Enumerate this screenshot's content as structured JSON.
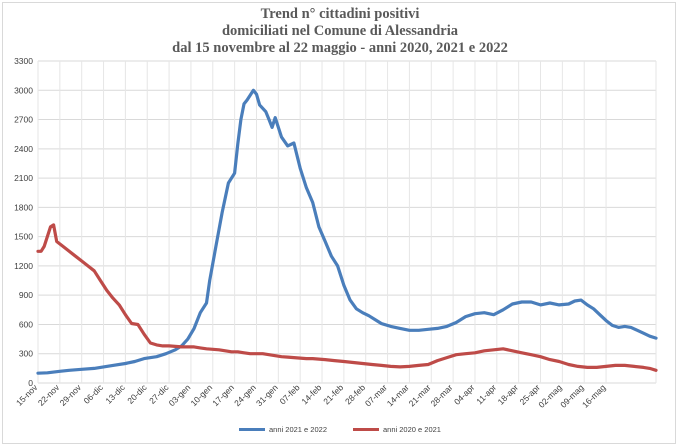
{
  "chart_data": {
    "type": "line",
    "title": [
      "Trend n° cittadini positivi",
      "domiciliati nel Comune di Alessandria",
      "dal 15 novembre al 22 maggio - anni 2020, 2021 e 2022"
    ],
    "xlabel": "",
    "ylabel": "",
    "ylim": [
      0,
      3300
    ],
    "yticks": [
      0,
      300,
      600,
      900,
      1200,
      1500,
      1800,
      2100,
      2400,
      2700,
      3000,
      3300
    ],
    "x_tick_labels": [
      "15-nov",
      "22-nov",
      "29-nov",
      "06-dic",
      "13-dic",
      "20-dic",
      "27-dic",
      "03-gen",
      "10-gen",
      "17-gen",
      "24-gen",
      "31-gen",
      "07-feb",
      "14-feb",
      "21-feb",
      "28-feb",
      "07-mar",
      "14-mar",
      "21-mar",
      "28-mar",
      "04-apr",
      "11-apr",
      "18-apr",
      "25-apr",
      "02-mag",
      "09-mag",
      "16-mag"
    ],
    "x_days_span": 189,
    "grid": true,
    "legend_position": "bottom",
    "series": [
      {
        "name": "anni 2021 e 2022",
        "color": "#4a7ebb",
        "points": [
          [
            0,
            100
          ],
          [
            3,
            105
          ],
          [
            7,
            120
          ],
          [
            10,
            130
          ],
          [
            14,
            140
          ],
          [
            18,
            150
          ],
          [
            21,
            165
          ],
          [
            24,
            180
          ],
          [
            28,
            200
          ],
          [
            31,
            220
          ],
          [
            34,
            250
          ],
          [
            38,
            270
          ],
          [
            41,
            300
          ],
          [
            44,
            340
          ],
          [
            46,
            380
          ],
          [
            48,
            450
          ],
          [
            50,
            560
          ],
          [
            52,
            720
          ],
          [
            54,
            820
          ],
          [
            55,
            1050
          ],
          [
            57,
            1400
          ],
          [
            59,
            1750
          ],
          [
            61,
            2050
          ],
          [
            63,
            2150
          ],
          [
            64,
            2450
          ],
          [
            65,
            2700
          ],
          [
            66,
            2860
          ],
          [
            67,
            2900
          ],
          [
            69,
            3000
          ],
          [
            70,
            2960
          ],
          [
            71,
            2850
          ],
          [
            73,
            2780
          ],
          [
            74,
            2700
          ],
          [
            75,
            2620
          ],
          [
            76,
            2720
          ],
          [
            78,
            2520
          ],
          [
            80,
            2430
          ],
          [
            82,
            2460
          ],
          [
            84,
            2200
          ],
          [
            86,
            2000
          ],
          [
            88,
            1850
          ],
          [
            90,
            1600
          ],
          [
            92,
            1450
          ],
          [
            94,
            1300
          ],
          [
            96,
            1200
          ],
          [
            98,
            1000
          ],
          [
            100,
            850
          ],
          [
            102,
            760
          ],
          [
            104,
            720
          ],
          [
            106,
            690
          ],
          [
            108,
            650
          ],
          [
            110,
            610
          ],
          [
            113,
            580
          ],
          [
            116,
            560
          ],
          [
            119,
            540
          ],
          [
            122,
            540
          ],
          [
            125,
            550
          ],
          [
            128,
            560
          ],
          [
            131,
            580
          ],
          [
            134,
            620
          ],
          [
            137,
            680
          ],
          [
            140,
            710
          ],
          [
            143,
            720
          ],
          [
            146,
            700
          ],
          [
            149,
            750
          ],
          [
            152,
            810
          ],
          [
            155,
            830
          ],
          [
            158,
            830
          ],
          [
            161,
            800
          ],
          [
            164,
            820
          ],
          [
            167,
            800
          ],
          [
            170,
            810
          ],
          [
            172,
            840
          ],
          [
            174,
            850
          ],
          [
            176,
            800
          ],
          [
            178,
            760
          ],
          [
            180,
            700
          ],
          [
            182,
            640
          ],
          [
            184,
            590
          ],
          [
            186,
            570
          ],
          [
            188,
            580
          ],
          [
            190,
            570
          ],
          [
            192,
            540
          ],
          [
            194,
            510
          ],
          [
            196,
            480
          ],
          [
            198,
            460
          ]
        ]
      },
      {
        "name": "anni 2020 e 2021",
        "color": "#be4b48",
        "points": [
          [
            0,
            1350
          ],
          [
            1,
            1350
          ],
          [
            2,
            1400
          ],
          [
            4,
            1600
          ],
          [
            5,
            1620
          ],
          [
            6,
            1450
          ],
          [
            8,
            1400
          ],
          [
            10,
            1350
          ],
          [
            12,
            1300
          ],
          [
            14,
            1250
          ],
          [
            16,
            1200
          ],
          [
            18,
            1150
          ],
          [
            20,
            1050
          ],
          [
            22,
            950
          ],
          [
            24,
            870
          ],
          [
            26,
            800
          ],
          [
            28,
            700
          ],
          [
            30,
            610
          ],
          [
            32,
            600
          ],
          [
            34,
            500
          ],
          [
            36,
            410
          ],
          [
            38,
            390
          ],
          [
            40,
            380
          ],
          [
            42,
            380
          ],
          [
            44,
            375
          ],
          [
            46,
            370
          ],
          [
            48,
            370
          ],
          [
            50,
            370
          ],
          [
            52,
            360
          ],
          [
            54,
            350
          ],
          [
            56,
            345
          ],
          [
            58,
            340
          ],
          [
            60,
            330
          ],
          [
            62,
            320
          ],
          [
            64,
            320
          ],
          [
            66,
            310
          ],
          [
            68,
            300
          ],
          [
            70,
            300
          ],
          [
            72,
            300
          ],
          [
            74,
            290
          ],
          [
            76,
            280
          ],
          [
            78,
            270
          ],
          [
            80,
            265
          ],
          [
            82,
            260
          ],
          [
            84,
            255
          ],
          [
            86,
            250
          ],
          [
            88,
            250
          ],
          [
            90,
            245
          ],
          [
            92,
            240
          ],
          [
            95,
            230
          ],
          [
            98,
            220
          ],
          [
            101,
            210
          ],
          [
            104,
            200
          ],
          [
            107,
            190
          ],
          [
            110,
            180
          ],
          [
            113,
            170
          ],
          [
            116,
            165
          ],
          [
            119,
            170
          ],
          [
            122,
            180
          ],
          [
            125,
            190
          ],
          [
            128,
            230
          ],
          [
            131,
            260
          ],
          [
            134,
            290
          ],
          [
            137,
            300
          ],
          [
            140,
            310
          ],
          [
            143,
            330
          ],
          [
            146,
            340
          ],
          [
            149,
            350
          ],
          [
            152,
            330
          ],
          [
            155,
            310
          ],
          [
            158,
            290
          ],
          [
            161,
            270
          ],
          [
            164,
            240
          ],
          [
            167,
            220
          ],
          [
            170,
            190
          ],
          [
            173,
            170
          ],
          [
            176,
            160
          ],
          [
            179,
            160
          ],
          [
            182,
            170
          ],
          [
            185,
            180
          ],
          [
            188,
            180
          ],
          [
            191,
            170
          ],
          [
            194,
            160
          ],
          [
            196,
            150
          ],
          [
            198,
            130
          ]
        ]
      }
    ]
  }
}
